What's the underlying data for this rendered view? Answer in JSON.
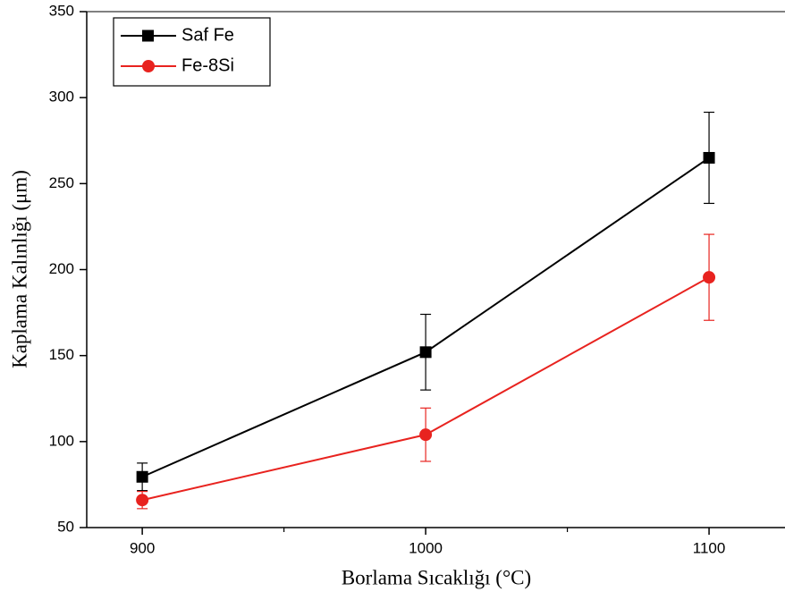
{
  "chart_data": {
    "type": "line",
    "x_label": "Borlama Sıcaklığı (°C)",
    "y_label": "Kaplama Kalınlığı (μm)",
    "x": [
      900,
      1000,
      1100
    ],
    "series": [
      {
        "name": "Saf Fe",
        "color": "#000000",
        "marker": "square",
        "values": [
          79.5,
          152,
          265
        ],
        "errors": [
          8,
          22,
          26.5
        ]
      },
      {
        "name": "Fe-8Si",
        "color": "#e8231f",
        "marker": "circle",
        "values": [
          66,
          104,
          195.5
        ],
        "errors": [
          5,
          15.5,
          25
        ]
      }
    ],
    "xlim": [
      880.4,
      1126.8
    ],
    "xticks": [
      900,
      1000,
      1100
    ],
    "xminorticks": [
      950,
      1050
    ],
    "ylim": [
      50,
      350
    ],
    "yticks": [
      50,
      100,
      150,
      200,
      250,
      300,
      350
    ],
    "legend": "top-left"
  }
}
